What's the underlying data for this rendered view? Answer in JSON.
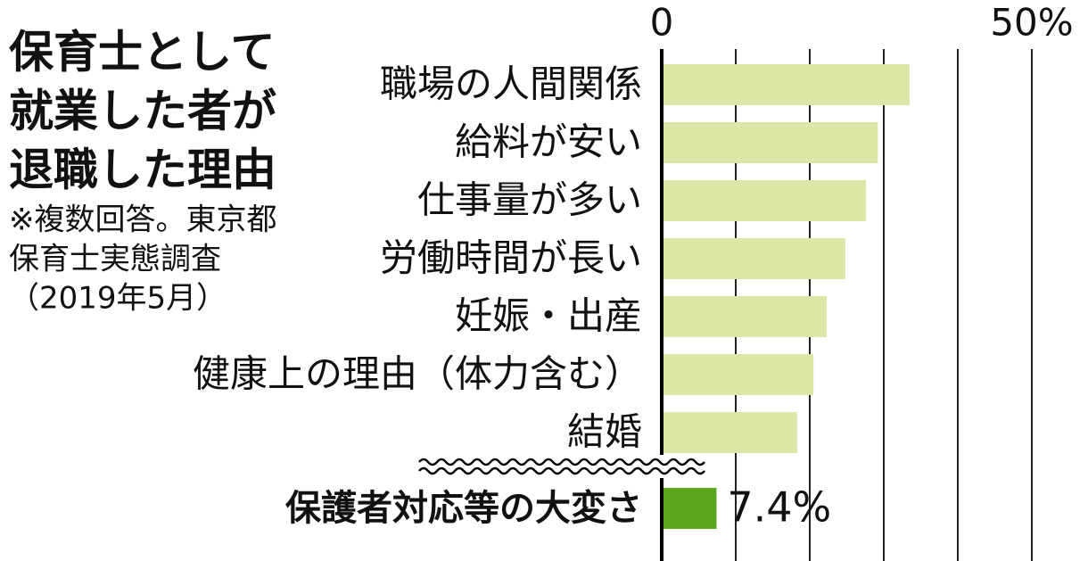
{
  "chart_data": {
    "type": "bar",
    "orientation": "horizontal",
    "title": [
      "保育士として",
      "就業した者が",
      "退職した理由"
    ],
    "note": [
      "※複数回答。東京都",
      "保育士実態調査",
      "（2019年5月）"
    ],
    "categories": [
      "職場の人間関係",
      "給料が安い",
      "仕事量が多い",
      "労働時間が長い",
      "妊娠・出産",
      "健康上の理由（体力含む）",
      "結婚",
      "保護者対応等の大変さ"
    ],
    "values": [
      33.5,
      29.2,
      27.6,
      24.8,
      22.3,
      20.5,
      18.3,
      7.4
    ],
    "value_labels": [
      null,
      null,
      null,
      null,
      null,
      null,
      null,
      "7.4%"
    ],
    "colors": [
      "#dce6a6",
      "#dce6a6",
      "#dce6a6",
      "#dce6a6",
      "#dce6a6",
      "#dce6a6",
      "#dce6a6",
      "#5ba51f"
    ],
    "xlim": [
      0,
      50
    ],
    "xticks": [
      0,
      {
        "value": 10,
        "label": null
      },
      {
        "value": 20,
        "label": null
      },
      {
        "value": 30,
        "label": null
      },
      {
        "value": 40,
        "label": null
      },
      {
        "value": 50,
        "label": "50%"
      }
    ],
    "grid": true
  }
}
